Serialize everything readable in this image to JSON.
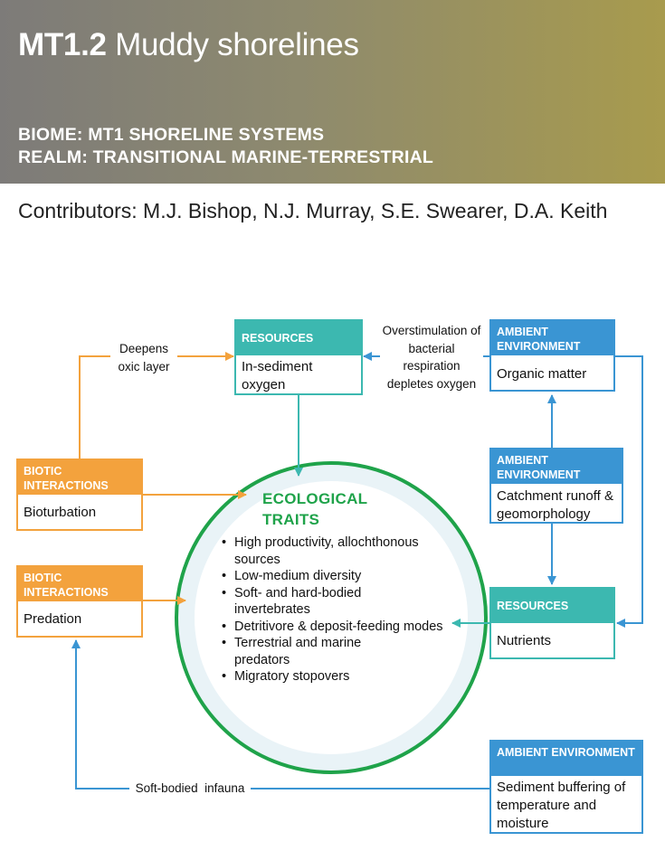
{
  "header": {
    "code": "MT1.2",
    "name": "Muddy shorelines",
    "biome": "BIOME: MT1 SHORELINE SYSTEMS",
    "realm": "REALM: TRANSITIONAL MARINE-TERRESTRIAL"
  },
  "contributors": "Contributors: M.J. Bishop, N.J. Murray, S.E. Swearer, D.A. Keith",
  "diagram": {
    "ecological_traits": {
      "title_line1": "ECOLOGICAL",
      "title_line2": "TRAITS",
      "items": [
        "High productivity, allochthonous sources",
        "Low-medium diversity",
        "Soft- and hard-bodied invertebrates",
        "Detritivore & deposit-feeding modes",
        "Terrestrial and marine predators",
        "Migratory stopovers"
      ]
    },
    "boxes": {
      "resources_oxygen": {
        "header": "RESOURCES",
        "body": "In-sediment oxygen"
      },
      "ambient_organic": {
        "header": "AMBIENT ENVIRONMENT",
        "body": "Organic matter"
      },
      "ambient_catchment": {
        "header": "AMBIENT ENVIRONMENT",
        "body": "Catchment runoff & geomorphology"
      },
      "resources_nutrients": {
        "header": "RESOURCES",
        "body": "Nutrients"
      },
      "ambient_sediment": {
        "header": "AMBIENT ENVIRONMENT",
        "body": "Sediment buffering of temperature and moisture"
      },
      "biotic_bioturbation": {
        "header": "BIOTIC INTERACTIONS",
        "body": "Bioturbation"
      },
      "biotic_predation": {
        "header": "BIOTIC INTERACTIONS",
        "body": "Predation"
      }
    },
    "labels": {
      "deepens": "Deepens oxic layer",
      "overstimulation": "Overstimulation of bacterial respiration depletes oxygen",
      "soft_bodied": "Soft-bodied  infauna"
    },
    "colors": {
      "resources": "#3cb8b0",
      "ambient": "#3a95d3",
      "biotic": "#f3a23d",
      "traits_ring": "#1fa34a"
    }
  }
}
